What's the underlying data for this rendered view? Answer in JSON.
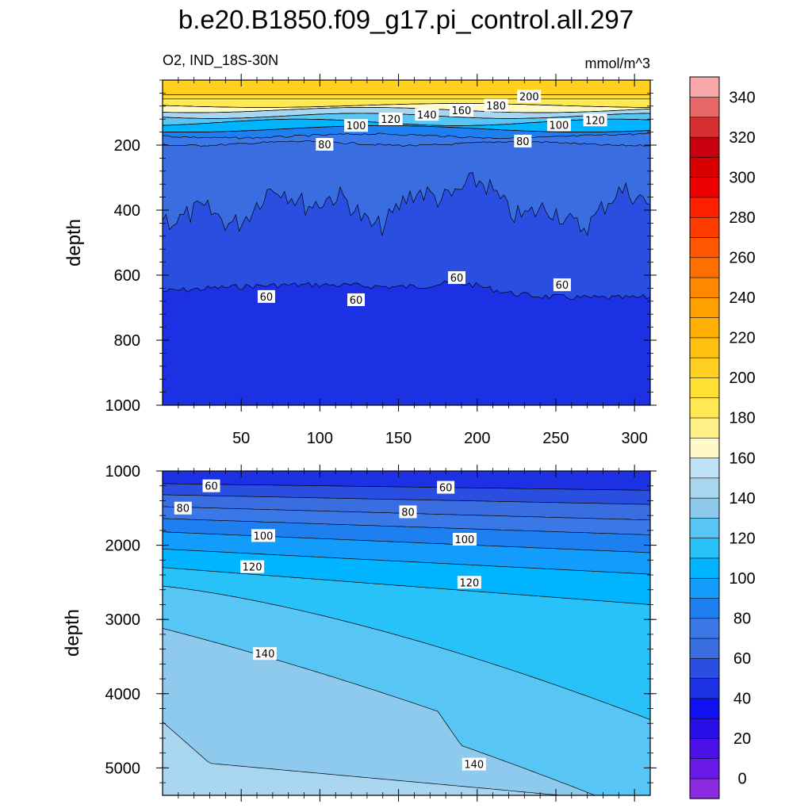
{
  "figure": {
    "title": "b.e20.B1850.f09_g17.pi_control.all.297",
    "left_subtitle": "O2, IND_18S-30N",
    "right_subtitle": "mmol/m^3"
  },
  "chart_data": [
    {
      "type": "contour",
      "panel": "upper",
      "variable": "O2",
      "region": "IND_18S-30N",
      "units": "mmol/m^3",
      "ylabel": "depth",
      "xlabel": "",
      "xlim": [
        0,
        310
      ],
      "ylim": [
        1000,
        0
      ],
      "x_ticks": [
        "50",
        "100",
        "150",
        "200",
        "250",
        "300"
      ],
      "x_tick_values": [
        50,
        100,
        150,
        200,
        250,
        300
      ],
      "y_ticks": [
        "200",
        "400",
        "600",
        "800",
        "1000"
      ],
      "y_tick_values": [
        200,
        400,
        600,
        800,
        1000
      ],
      "contour_labels": [
        {
          "text": "200",
          "x": 233,
          "y": 52
        },
        {
          "text": "180",
          "x": 212,
          "y": 80
        },
        {
          "text": "160",
          "x": 190,
          "y": 95
        },
        {
          "text": "140",
          "x": 168,
          "y": 108
        },
        {
          "text": "120",
          "x": 145,
          "y": 122
        },
        {
          "text": "100",
          "x": 123,
          "y": 142
        },
        {
          "text": "80",
          "x": 103,
          "y": 200
        },
        {
          "text": "100",
          "x": 252,
          "y": 140
        },
        {
          "text": "120",
          "x": 275,
          "y": 125
        },
        {
          "text": "80",
          "x": 229,
          "y": 190
        },
        {
          "text": "60",
          "x": 66,
          "y": 668
        },
        {
          "text": "60",
          "x": 123,
          "y": 678
        },
        {
          "text": "60",
          "x": 187,
          "y": 610
        },
        {
          "text": "60",
          "x": 254,
          "y": 632
        }
      ]
    },
    {
      "type": "contour",
      "panel": "lower",
      "variable": "O2",
      "units": "mmol/m^3",
      "ylabel": "depth",
      "xlabel": "",
      "xlim": [
        0,
        310
      ],
      "ylim": [
        5370,
        1000
      ],
      "x_ticks": [],
      "x_tick_values": [
        50,
        100,
        150,
        200,
        250,
        300
      ],
      "y_ticks": [
        "1000",
        "2000",
        "3000",
        "4000",
        "5000"
      ],
      "y_tick_values": [
        1000,
        2000,
        3000,
        4000,
        5000
      ],
      "contour_labels": [
        {
          "text": "60",
          "x": 31,
          "y": 1210
        },
        {
          "text": "60",
          "x": 180,
          "y": 1230
        },
        {
          "text": "80",
          "x": 13,
          "y": 1510
        },
        {
          "text": "80",
          "x": 156,
          "y": 1560
        },
        {
          "text": "100",
          "x": 64,
          "y": 1880
        },
        {
          "text": "100",
          "x": 192,
          "y": 1930
        },
        {
          "text": "120",
          "x": 57,
          "y": 2300
        },
        {
          "text": "120",
          "x": 195,
          "y": 2510
        },
        {
          "text": "140",
          "x": 65,
          "y": 3470
        },
        {
          "text": "140",
          "x": 198,
          "y": 4960
        }
      ]
    },
    {
      "type": "colorbar",
      "levels": [
        0,
        10,
        20,
        30,
        40,
        50,
        60,
        70,
        80,
        90,
        100,
        110,
        120,
        130,
        140,
        150,
        160,
        170,
        180,
        190,
        200,
        210,
        220,
        230,
        240,
        250,
        260,
        270,
        280,
        290,
        300,
        310,
        320,
        330,
        340,
        350
      ],
      "tick_labels": [
        "0",
        "20",
        "40",
        "60",
        "80",
        "100",
        "120",
        "140",
        "160",
        "180",
        "200",
        "220",
        "240",
        "260",
        "280",
        "300",
        "320",
        "340"
      ],
      "tick_values": [
        0,
        20,
        40,
        60,
        80,
        100,
        120,
        140,
        160,
        180,
        200,
        220,
        240,
        260,
        280,
        300,
        320,
        340
      ],
      "colors": [
        "#8b2be2",
        "#6a1ae8",
        "#4a12e8",
        "#2a0ee8",
        "#1010f0",
        "#1c30e4",
        "#2a4fe0",
        "#3a6ee0",
        "#3a78e8",
        "#1e7ff0",
        "#129cfc",
        "#00b4ff",
        "#28c2f8",
        "#58c6f4",
        "#8ec9ee",
        "#a8d6f0",
        "#c0e2f6",
        "#fff8c8",
        "#fff088",
        "#ffe850",
        "#ffe030",
        "#ffd020",
        "#ffc010",
        "#ffb000",
        "#ffa000",
        "#ff8800",
        "#ff7000",
        "#ff5800",
        "#ff3c00",
        "#ff2000",
        "#ee0000",
        "#d80000",
        "#c80010",
        "#d83030",
        "#e86868",
        "#f8a8a8"
      ]
    }
  ]
}
